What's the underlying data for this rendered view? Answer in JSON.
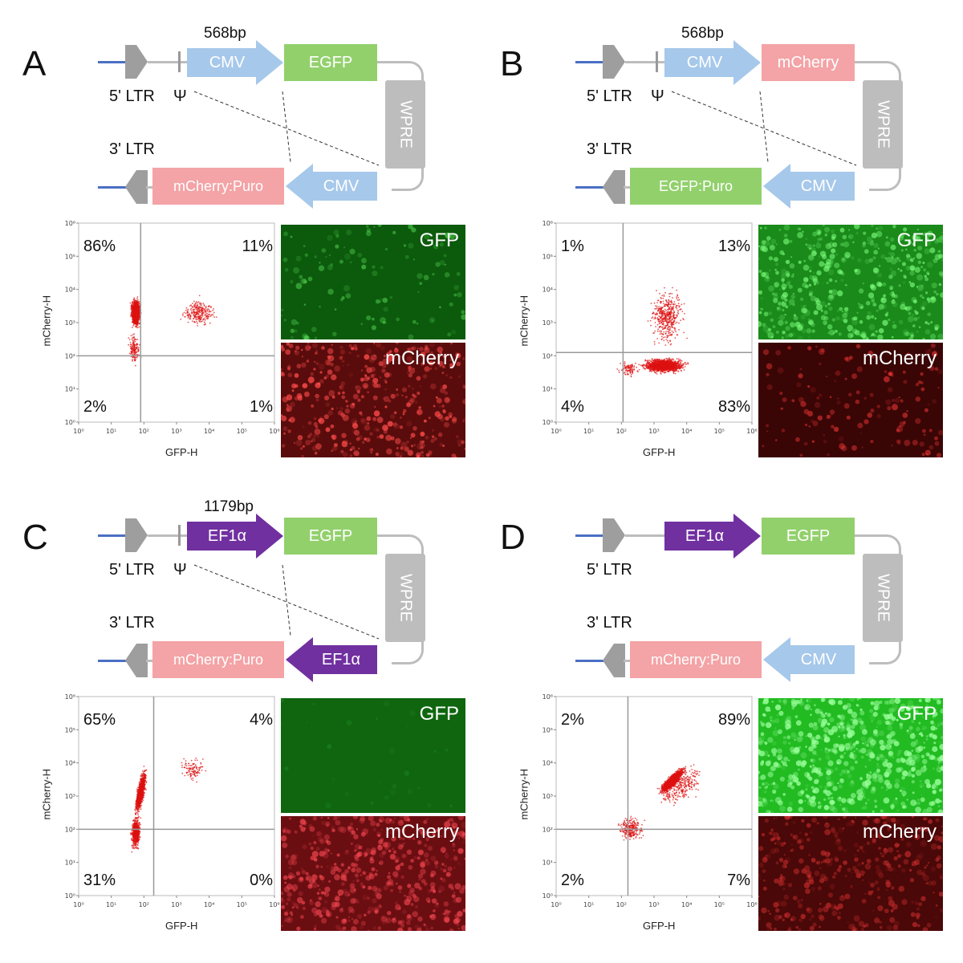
{
  "colors": {
    "cmv": "#a6c8ea",
    "egfp": "#92d06c",
    "mcherry": "#f4a3a6",
    "ef1a": "#7030a0",
    "wpre": "#bdbdbd",
    "ltr": "#9e9e9e"
  },
  "panels": [
    {
      "letter": "A",
      "top": {
        "size": "568bp",
        "promoter": "CMV",
        "promoter_type": "cmv",
        "gene": "EGFP",
        "gene_type": "egfp",
        "ltr": "5' LTR",
        "psi": "Ψ"
      },
      "bottom": {
        "ltr": "3' LTR",
        "gene": "mCherry:Puro",
        "gene_type": "mcherry",
        "promoter": "CMV",
        "promoter_type": "cmv"
      },
      "wpre": "WPRE",
      "facs": {
        "xlabel": "GFP-H",
        "ylabel": "mCherry-H",
        "q_ul": "86%",
        "q_ur": "11%",
        "q_ll": "2%",
        "q_lr": "1%",
        "xticks": [
          "10⁰",
          "10¹",
          "10²",
          "10³",
          "10⁴",
          "10⁵",
          "10⁶"
        ],
        "yticks": [
          "10⁰",
          "10¹",
          "10²",
          "10³",
          "10⁴",
          "10⁵",
          "10⁶"
        ]
      },
      "micro": {
        "top": "GFP",
        "bottom": "mCherry"
      }
    },
    {
      "letter": "B",
      "top": {
        "size": "568bp",
        "promoter": "CMV",
        "promoter_type": "cmv",
        "gene": "mCherry",
        "gene_type": "mcherry",
        "ltr": "5' LTR",
        "psi": "Ψ"
      },
      "bottom": {
        "ltr": "3' LTR",
        "gene": "EGFP:Puro",
        "gene_type": "egfp",
        "promoter": "CMV",
        "promoter_type": "cmv"
      },
      "wpre": "WPRE",
      "facs": {
        "xlabel": "GFP-H",
        "ylabel": "mCherry-H",
        "q_ul": "1%",
        "q_ur": "13%",
        "q_ll": "4%",
        "q_lr": "83%",
        "xticks": [
          "10⁰",
          "10¹",
          "10²",
          "10³",
          "10⁴",
          "10⁵",
          "10⁶"
        ],
        "yticks": [
          "10⁰",
          "10¹",
          "10²",
          "10³",
          "10⁴",
          "10⁵",
          "10⁶"
        ]
      },
      "micro": {
        "top": "GFP",
        "bottom": "mCherry"
      }
    },
    {
      "letter": "C",
      "top": {
        "size": "1179bp",
        "promoter": "EF1α",
        "promoter_type": "ef1a",
        "gene": "EGFP",
        "gene_type": "egfp",
        "ltr": "5' LTR",
        "psi": "Ψ"
      },
      "bottom": {
        "ltr": "3' LTR",
        "gene": "mCherry:Puro",
        "gene_type": "mcherry",
        "promoter": "EF1α",
        "promoter_type": "ef1a"
      },
      "wpre": "WPRE",
      "facs": {
        "xlabel": "GFP-H",
        "ylabel": "mCherry-H",
        "q_ul": "65%",
        "q_ur": "4%",
        "q_ll": "31%",
        "q_lr": "0%",
        "xticks": [
          "10⁰",
          "10¹",
          "10²",
          "10³",
          "10⁴",
          "10⁵",
          "10⁶"
        ],
        "yticks": [
          "10⁰",
          "10¹",
          "10²",
          "10³",
          "10⁴",
          "10⁵",
          "10⁶"
        ]
      },
      "micro": {
        "top": "GFP",
        "bottom": "mCherry"
      }
    },
    {
      "letter": "D",
      "top": {
        "size": "",
        "promoter": "EF1α",
        "promoter_type": "ef1a",
        "gene": "EGFP",
        "gene_type": "egfp",
        "ltr": "5' LTR",
        "psi": ""
      },
      "bottom": {
        "ltr": "3' LTR",
        "gene": "mCherry:Puro",
        "gene_type": "mcherry",
        "promoter": "CMV",
        "promoter_type": "cmv"
      },
      "wpre": "WPRE",
      "facs": {
        "xlabel": "GFP-H",
        "ylabel": "mCherry-H",
        "q_ul": "2%",
        "q_ur": "89%",
        "q_ll": "2%",
        "q_lr": "7%",
        "xticks": [
          "10⁰",
          "10¹",
          "10²",
          "10³",
          "10⁴",
          "10⁵",
          "10⁶"
        ],
        "yticks": [
          "10⁰",
          "10¹",
          "10²",
          "10³",
          "10⁴",
          "10⁵",
          "10⁶"
        ]
      },
      "micro": {
        "top": "GFP",
        "bottom": "mCherry"
      }
    }
  ]
}
